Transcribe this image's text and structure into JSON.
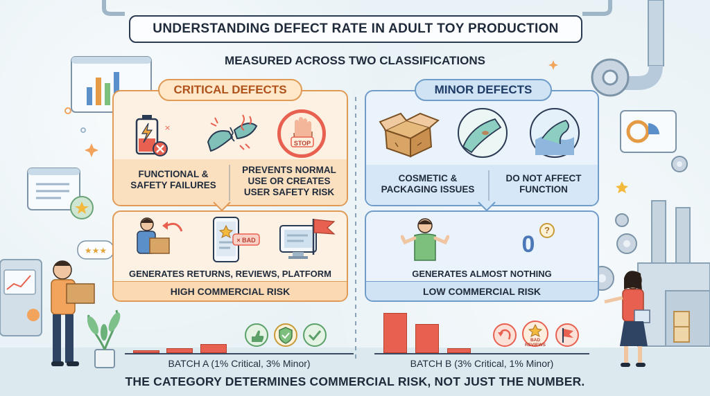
{
  "title": "UNDERSTANDING DEFECT RATE IN ADULT TOY PRODUCTION",
  "subtitle": "MEASURED ACROSS TWO CLASSIFICATIONS",
  "critical": {
    "heading": "CRITICAL DEFECTS",
    "label_left": "FUNCTIONAL &\nSAFETY FAILURES",
    "label_right": "PREVENTS NORMAL\nUSE OR CREATES\nUSER SAFETY RISK",
    "stop_text": "STOP",
    "bad_text": "× BAD",
    "consequence": "GENERATES RETURNS, REVIEWS, PLATFORM FLAGS",
    "risk": "HIGH COMMERCIAL RISK"
  },
  "minor": {
    "heading": "MINOR DEFECTS",
    "label_left": "COSMETIC &\nPACKAGING ISSUES",
    "label_right": "DO NOT AFFECT\nFUNCTION",
    "zero_text": "0",
    "question_text": "?",
    "consequence": "GENERATES ALMOST NOTHING",
    "risk": "LOW COMMERCIAL RISK"
  },
  "batches": {
    "a_label": "BATCH A (1% Critical, 3% Minor)",
    "b_label": "BATCH B (3% Critical, 1% Minor)",
    "b_badge": "BAD REVIEWS"
  },
  "footer": "THE CATEGORY DETERMINES COMMERCIAL RISK, NOT JUST THE NUMBER.",
  "colors": {
    "critical_border": "#e09a55",
    "critical_bg": "#fdf1e3",
    "minor_border": "#6f9cc8",
    "minor_bg": "#eaf3fb",
    "bar_red": "#e8604f"
  }
}
